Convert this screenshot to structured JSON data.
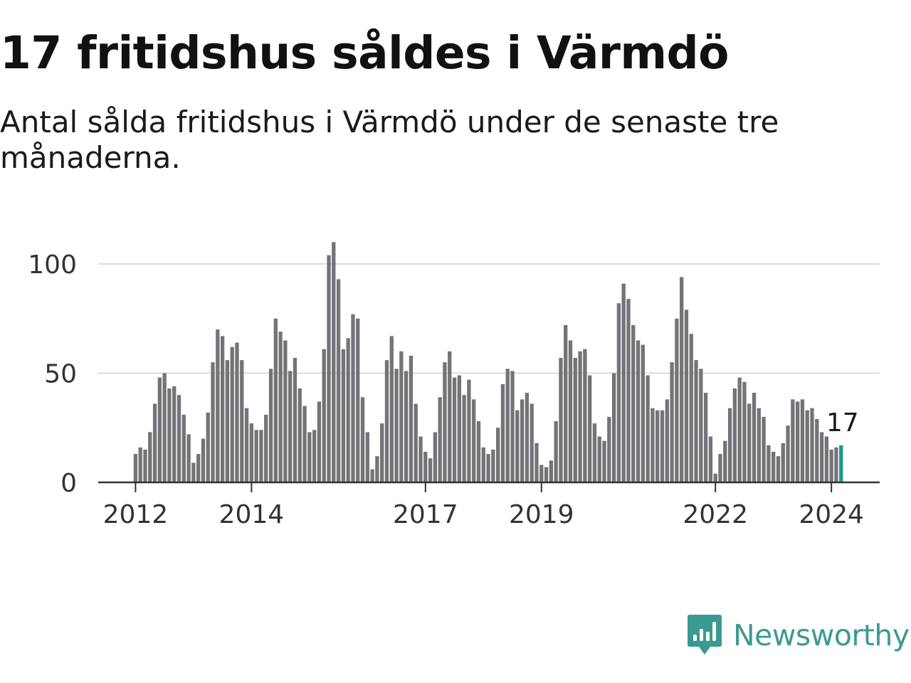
{
  "title": "17 fritidshus såldes i Värmdö",
  "subtitle": "Antal sålda fritidshus i Värmdö under de senaste tre månaderna.",
  "brand": {
    "name": "Newsworthy",
    "icon": "newsworthy-logo-icon",
    "color": "#3a9a92"
  },
  "colors": {
    "bar": "#747378",
    "highlight": "#1c9a8f",
    "grid": "#dddddd",
    "axis": "#333333"
  },
  "chart_data": {
    "type": "bar",
    "x_unit": "month",
    "start_period": "2012-01",
    "values": [
      13,
      16,
      15,
      23,
      36,
      48,
      50,
      43,
      44,
      40,
      31,
      22,
      9,
      13,
      20,
      32,
      55,
      70,
      67,
      56,
      62,
      64,
      56,
      34,
      27,
      24,
      24,
      31,
      52,
      75,
      69,
      65,
      51,
      57,
      43,
      35,
      23,
      24,
      37,
      61,
      104,
      110,
      93,
      61,
      66,
      77,
      75,
      39,
      23,
      6,
      12,
      27,
      56,
      67,
      52,
      60,
      51,
      58,
      36,
      21,
      14,
      11,
      23,
      39,
      55,
      60,
      48,
      49,
      40,
      47,
      38,
      28,
      16,
      13,
      15,
      25,
      45,
      52,
      51,
      33,
      38,
      41,
      36,
      18,
      8,
      7,
      10,
      28,
      57,
      72,
      65,
      57,
      60,
      61,
      49,
      27,
      21,
      19,
      30,
      50,
      82,
      91,
      84,
      72,
      65,
      63,
      49,
      34,
      33,
      33,
      38,
      55,
      75,
      94,
      79,
      68,
      56,
      52,
      41,
      21,
      4,
      13,
      19,
      34,
      43,
      48,
      46,
      36,
      41,
      34,
      30,
      17,
      14,
      12,
      18,
      26,
      38,
      37,
      38,
      33,
      34,
      29,
      23,
      21,
      15,
      16,
      17
    ],
    "highlight_index": 146,
    "highlight_label": "17",
    "x_ticks": [
      {
        "label": "2012",
        "index": 0
      },
      {
        "label": "2014",
        "index": 24
      },
      {
        "label": "2017",
        "index": 60
      },
      {
        "label": "2019",
        "index": 84
      },
      {
        "label": "2022",
        "index": 120
      },
      {
        "label": "2024",
        "index": 144
      }
    ],
    "y_ticks": [
      {
        "label": "0",
        "value": 0
      },
      {
        "label": "50",
        "value": 50
      },
      {
        "label": "100",
        "value": 100
      }
    ],
    "ylim": [
      0,
      110
    ],
    "grid": true
  }
}
